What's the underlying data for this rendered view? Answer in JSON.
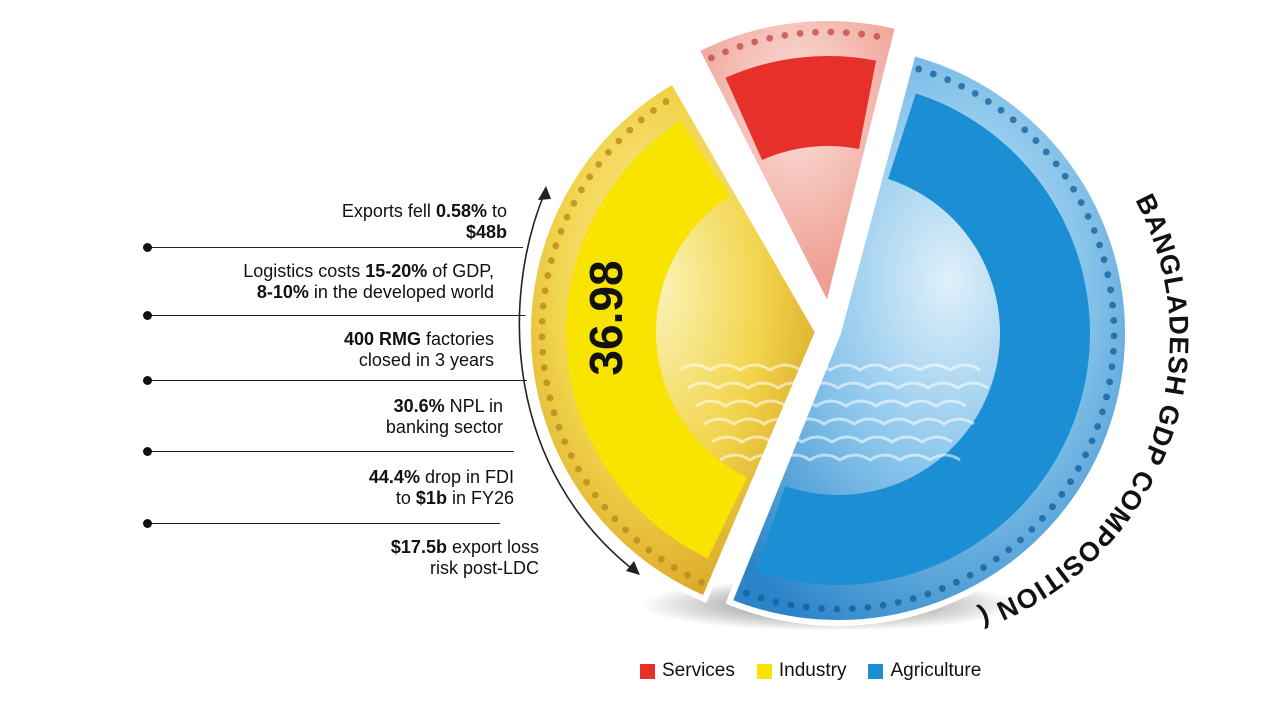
{
  "facts": [
    {
      "parts": [
        {
          "t": "Exports fell ",
          "b": false
        },
        {
          "t": "0.58%",
          "b": true
        },
        {
          "t": " to",
          "b": false
        },
        {
          "br": true
        },
        {
          "t": "$48b",
          "b": true
        }
      ]
    },
    {
      "parts": [
        {
          "t": "Logistics costs ",
          "b": false
        },
        {
          "t": "15-20%",
          "b": true
        },
        {
          "t": " of GDP,",
          "b": false
        },
        {
          "br": true
        },
        {
          "t": "8-10%",
          "b": true
        },
        {
          "t": " in the developed world",
          "b": false
        }
      ]
    },
    {
      "parts": [
        {
          "t": "400 RMG",
          "b": true
        },
        {
          "t": " factories",
          "b": false
        },
        {
          "br": true
        },
        {
          "t": "closed in 3 years",
          "b": false
        }
      ]
    },
    {
      "parts": [
        {
          "t": "30.6%",
          "b": true
        },
        {
          "t": " NPL in",
          "b": false
        },
        {
          "br": true
        },
        {
          "t": "banking sector",
          "b": false
        }
      ]
    },
    {
      "parts": [
        {
          "t": "44.4%",
          "b": true
        },
        {
          "t": " drop in FDI",
          "b": false
        },
        {
          "br": true
        },
        {
          "t": "to ",
          "b": false
        },
        {
          "t": "$1b",
          "b": true
        },
        {
          "t": " in FY26",
          "b": false
        }
      ]
    },
    {
      "parts": [
        {
          "t": "$17.5b",
          "b": true
        },
        {
          "t": " export loss",
          "b": false
        },
        {
          "br": true
        },
        {
          "t": "risk post-LDC",
          "b": false
        }
      ]
    }
  ],
  "chart_data": {
    "type": "pie",
    "title": "BANGLADESH GDP COMPOSITION (%)",
    "labels": [
      "Services",
      "Industry",
      "Agriculture"
    ],
    "data_labels": [
      "",
      "36.98",
      ""
    ],
    "colors": {
      "Services": "#e8302a",
      "Industry": "#f9e300",
      "Agriculture": "#1c8fd4"
    },
    "legend_position": "bottom"
  },
  "legend": [
    {
      "label": "Services",
      "color": "#e8302a"
    },
    {
      "label": "Industry",
      "color": "#f9e300"
    },
    {
      "label": "Agriculture",
      "color": "#1c8fd4"
    }
  ]
}
